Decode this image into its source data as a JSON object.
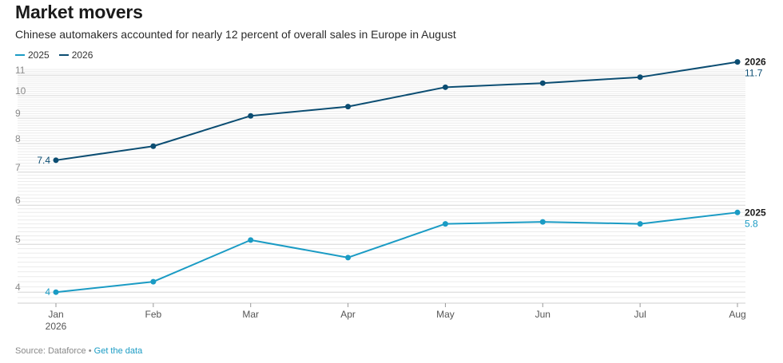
{
  "header": {
    "title": "Market movers",
    "subtitle": "Chinese automakers accounted for nearly 12 percent of overall sales in Europe in August"
  },
  "footer": {
    "source": "Source: Dataforce",
    "separator": "•",
    "link": "Get the data"
  },
  "colors": {
    "series_2025": "#1a9bc4",
    "series_2026": "#0b4d72",
    "grid": "#e4e4e4",
    "axis_text": "#8a8a8a"
  },
  "chart_data": {
    "type": "line",
    "categories": [
      "Jan",
      "Feb",
      "Mar",
      "Apr",
      "May",
      "Jun",
      "Jul",
      "Aug"
    ],
    "x_sublabel": "2026",
    "yticks": [
      4,
      5,
      6,
      7,
      8,
      9,
      10,
      11
    ],
    "ylim": [
      3.8,
      11.3
    ],
    "y_scale": "log",
    "grid": true,
    "legend_position": "top-left",
    "series": [
      {
        "name": "2025",
        "values": [
          4.0,
          4.2,
          5.1,
          4.7,
          5.5,
          5.55,
          5.5,
          5.8
        ],
        "start_label": "4",
        "end_label": "2025",
        "end_value_label": "5.8"
      },
      {
        "name": "2026",
        "values": [
          7.4,
          7.9,
          9.1,
          9.5,
          10.4,
          10.6,
          10.9,
          11.7
        ],
        "start_label": "7.4",
        "end_label": "2026",
        "end_value_label": "11.7"
      }
    ]
  }
}
